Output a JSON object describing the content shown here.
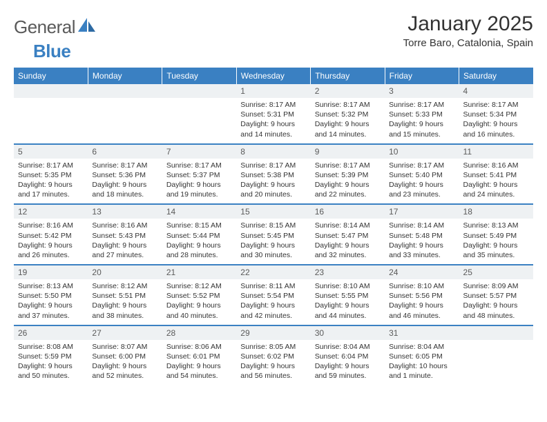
{
  "brand": {
    "name_a": "General",
    "name_b": "Blue"
  },
  "title": "January 2025",
  "location": "Torre Baro, Catalonia, Spain",
  "colors": {
    "header_bg": "#3a80c2",
    "header_text": "#ffffff",
    "daynum_bg": "#eef1f3",
    "text": "#333333",
    "row_border": "#3a80c2"
  },
  "day_headers": [
    "Sunday",
    "Monday",
    "Tuesday",
    "Wednesday",
    "Thursday",
    "Friday",
    "Saturday"
  ],
  "weeks": [
    [
      null,
      null,
      null,
      {
        "n": "1",
        "sr": "Sunrise: 8:17 AM",
        "ss": "Sunset: 5:31 PM",
        "d1": "Daylight: 9 hours",
        "d2": "and 14 minutes."
      },
      {
        "n": "2",
        "sr": "Sunrise: 8:17 AM",
        "ss": "Sunset: 5:32 PM",
        "d1": "Daylight: 9 hours",
        "d2": "and 14 minutes."
      },
      {
        "n": "3",
        "sr": "Sunrise: 8:17 AM",
        "ss": "Sunset: 5:33 PM",
        "d1": "Daylight: 9 hours",
        "d2": "and 15 minutes."
      },
      {
        "n": "4",
        "sr": "Sunrise: 8:17 AM",
        "ss": "Sunset: 5:34 PM",
        "d1": "Daylight: 9 hours",
        "d2": "and 16 minutes."
      }
    ],
    [
      {
        "n": "5",
        "sr": "Sunrise: 8:17 AM",
        "ss": "Sunset: 5:35 PM",
        "d1": "Daylight: 9 hours",
        "d2": "and 17 minutes."
      },
      {
        "n": "6",
        "sr": "Sunrise: 8:17 AM",
        "ss": "Sunset: 5:36 PM",
        "d1": "Daylight: 9 hours",
        "d2": "and 18 minutes."
      },
      {
        "n": "7",
        "sr": "Sunrise: 8:17 AM",
        "ss": "Sunset: 5:37 PM",
        "d1": "Daylight: 9 hours",
        "d2": "and 19 minutes."
      },
      {
        "n": "8",
        "sr": "Sunrise: 8:17 AM",
        "ss": "Sunset: 5:38 PM",
        "d1": "Daylight: 9 hours",
        "d2": "and 20 minutes."
      },
      {
        "n": "9",
        "sr": "Sunrise: 8:17 AM",
        "ss": "Sunset: 5:39 PM",
        "d1": "Daylight: 9 hours",
        "d2": "and 22 minutes."
      },
      {
        "n": "10",
        "sr": "Sunrise: 8:17 AM",
        "ss": "Sunset: 5:40 PM",
        "d1": "Daylight: 9 hours",
        "d2": "and 23 minutes."
      },
      {
        "n": "11",
        "sr": "Sunrise: 8:16 AM",
        "ss": "Sunset: 5:41 PM",
        "d1": "Daylight: 9 hours",
        "d2": "and 24 minutes."
      }
    ],
    [
      {
        "n": "12",
        "sr": "Sunrise: 8:16 AM",
        "ss": "Sunset: 5:42 PM",
        "d1": "Daylight: 9 hours",
        "d2": "and 26 minutes."
      },
      {
        "n": "13",
        "sr": "Sunrise: 8:16 AM",
        "ss": "Sunset: 5:43 PM",
        "d1": "Daylight: 9 hours",
        "d2": "and 27 minutes."
      },
      {
        "n": "14",
        "sr": "Sunrise: 8:15 AM",
        "ss": "Sunset: 5:44 PM",
        "d1": "Daylight: 9 hours",
        "d2": "and 28 minutes."
      },
      {
        "n": "15",
        "sr": "Sunrise: 8:15 AM",
        "ss": "Sunset: 5:45 PM",
        "d1": "Daylight: 9 hours",
        "d2": "and 30 minutes."
      },
      {
        "n": "16",
        "sr": "Sunrise: 8:14 AM",
        "ss": "Sunset: 5:47 PM",
        "d1": "Daylight: 9 hours",
        "d2": "and 32 minutes."
      },
      {
        "n": "17",
        "sr": "Sunrise: 8:14 AM",
        "ss": "Sunset: 5:48 PM",
        "d1": "Daylight: 9 hours",
        "d2": "and 33 minutes."
      },
      {
        "n": "18",
        "sr": "Sunrise: 8:13 AM",
        "ss": "Sunset: 5:49 PM",
        "d1": "Daylight: 9 hours",
        "d2": "and 35 minutes."
      }
    ],
    [
      {
        "n": "19",
        "sr": "Sunrise: 8:13 AM",
        "ss": "Sunset: 5:50 PM",
        "d1": "Daylight: 9 hours",
        "d2": "and 37 minutes."
      },
      {
        "n": "20",
        "sr": "Sunrise: 8:12 AM",
        "ss": "Sunset: 5:51 PM",
        "d1": "Daylight: 9 hours",
        "d2": "and 38 minutes."
      },
      {
        "n": "21",
        "sr": "Sunrise: 8:12 AM",
        "ss": "Sunset: 5:52 PM",
        "d1": "Daylight: 9 hours",
        "d2": "and 40 minutes."
      },
      {
        "n": "22",
        "sr": "Sunrise: 8:11 AM",
        "ss": "Sunset: 5:54 PM",
        "d1": "Daylight: 9 hours",
        "d2": "and 42 minutes."
      },
      {
        "n": "23",
        "sr": "Sunrise: 8:10 AM",
        "ss": "Sunset: 5:55 PM",
        "d1": "Daylight: 9 hours",
        "d2": "and 44 minutes."
      },
      {
        "n": "24",
        "sr": "Sunrise: 8:10 AM",
        "ss": "Sunset: 5:56 PM",
        "d1": "Daylight: 9 hours",
        "d2": "and 46 minutes."
      },
      {
        "n": "25",
        "sr": "Sunrise: 8:09 AM",
        "ss": "Sunset: 5:57 PM",
        "d1": "Daylight: 9 hours",
        "d2": "and 48 minutes."
      }
    ],
    [
      {
        "n": "26",
        "sr": "Sunrise: 8:08 AM",
        "ss": "Sunset: 5:59 PM",
        "d1": "Daylight: 9 hours",
        "d2": "and 50 minutes."
      },
      {
        "n": "27",
        "sr": "Sunrise: 8:07 AM",
        "ss": "Sunset: 6:00 PM",
        "d1": "Daylight: 9 hours",
        "d2": "and 52 minutes."
      },
      {
        "n": "28",
        "sr": "Sunrise: 8:06 AM",
        "ss": "Sunset: 6:01 PM",
        "d1": "Daylight: 9 hours",
        "d2": "and 54 minutes."
      },
      {
        "n": "29",
        "sr": "Sunrise: 8:05 AM",
        "ss": "Sunset: 6:02 PM",
        "d1": "Daylight: 9 hours",
        "d2": "and 56 minutes."
      },
      {
        "n": "30",
        "sr": "Sunrise: 8:04 AM",
        "ss": "Sunset: 6:04 PM",
        "d1": "Daylight: 9 hours",
        "d2": "and 59 minutes."
      },
      {
        "n": "31",
        "sr": "Sunrise: 8:04 AM",
        "ss": "Sunset: 6:05 PM",
        "d1": "Daylight: 10 hours",
        "d2": "and 1 minute."
      },
      null
    ]
  ]
}
